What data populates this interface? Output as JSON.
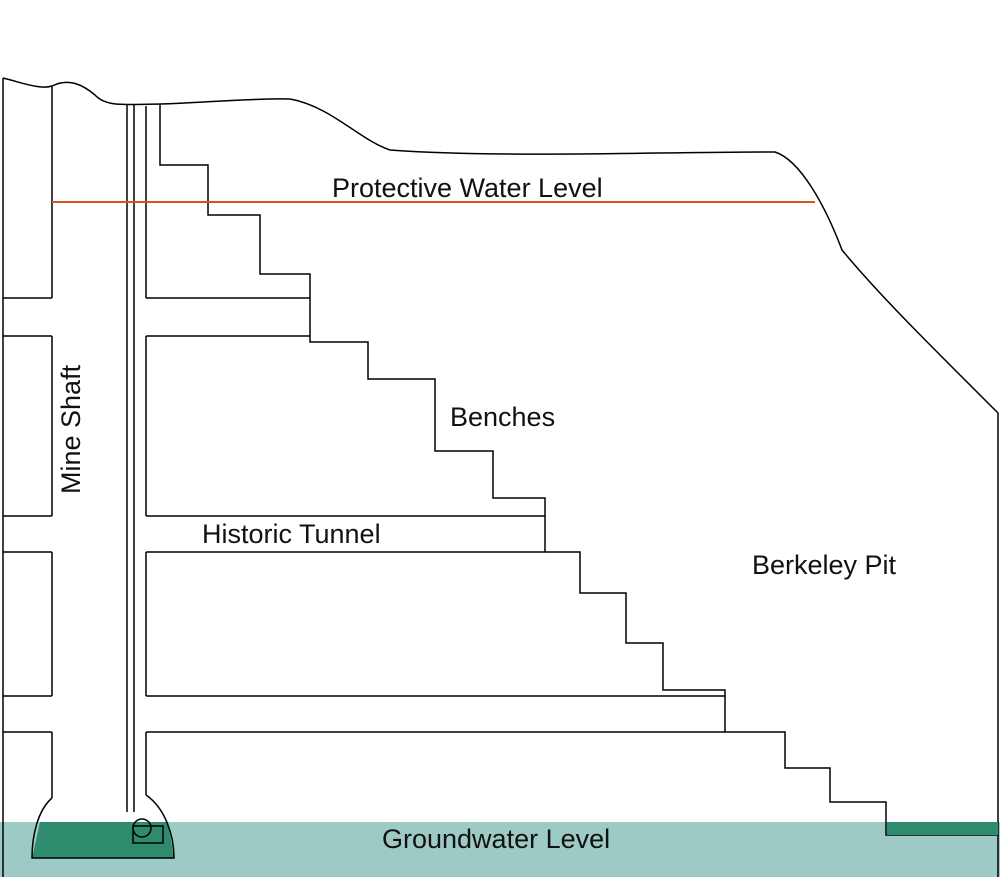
{
  "diagram": {
    "labels": {
      "protective_water_level": "Protective Water Level",
      "benches": "Benches",
      "mine_shaft": "Mine Shaft",
      "historic_tunnel": "Historic Tunnel",
      "berkeley_pit": "Berkeley Pit",
      "groundwater_level": "Groundwater Level"
    },
    "colors": {
      "protective_line": "#d9531e",
      "groundwater_band": "#9ecac5",
      "sump_water": "#2e8b6e",
      "outline": "#000000",
      "background": "#ffffff"
    }
  }
}
